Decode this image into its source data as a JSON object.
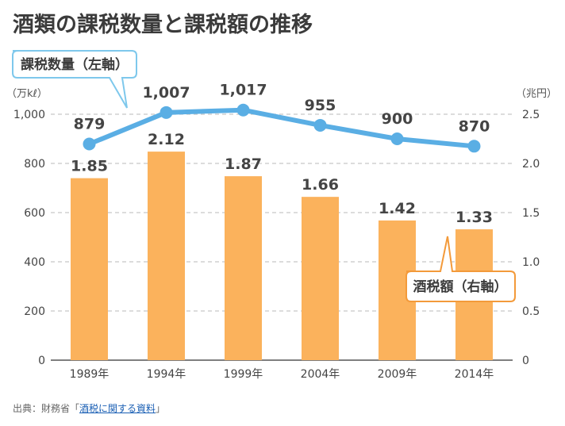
{
  "chart_data": {
    "type": "bar+line",
    "title": "酒類の課税数量と課税額の推移",
    "categories": [
      "1989年",
      "1994年",
      "1999年",
      "2004年",
      "2009年",
      "2014年"
    ],
    "series": [
      {
        "name": "課税数量（左軸）",
        "type": "line",
        "axis": "left",
        "values": [
          879,
          1007,
          1017,
          955,
          900,
          870
        ],
        "labels": [
          "879",
          "1,007",
          "1,017",
          "955",
          "900",
          "870"
        ]
      },
      {
        "name": "酒税額（右軸）",
        "type": "bar",
        "axis": "right",
        "values": [
          1.85,
          2.12,
          1.87,
          1.66,
          1.42,
          1.33
        ],
        "labels": [
          "1.85",
          "2.12",
          "1.87",
          "1.66",
          "1.42",
          "1.33"
        ]
      }
    ],
    "left_axis": {
      "unit": "（万kℓ）",
      "ylim": [
        0,
        1000
      ],
      "ticks": [
        0,
        200,
        400,
        600,
        800,
        1000
      ],
      "tick_labels": [
        "0",
        "200",
        "400",
        "600",
        "800",
        "1,000"
      ]
    },
    "right_axis": {
      "unit": "（兆円）",
      "ylim": [
        0,
        2.5
      ],
      "ticks": [
        0,
        0.5,
        1.0,
        1.5,
        2.0,
        2.5
      ],
      "tick_labels": [
        "0",
        "0.5",
        "1.0",
        "1.5",
        "2.0",
        "2.5"
      ]
    },
    "grid": true
  },
  "colors": {
    "bar": "#fbb25c",
    "line": "#5aaee4",
    "line_callout_border": "#7ec8ec",
    "bar_callout_border": "#f39a3a",
    "grid": "#c8c8c8",
    "title": "#3b3b3b"
  },
  "source": {
    "prefix": "出典：財務省「",
    "link": "酒税に関する資料",
    "suffix": "」"
  }
}
